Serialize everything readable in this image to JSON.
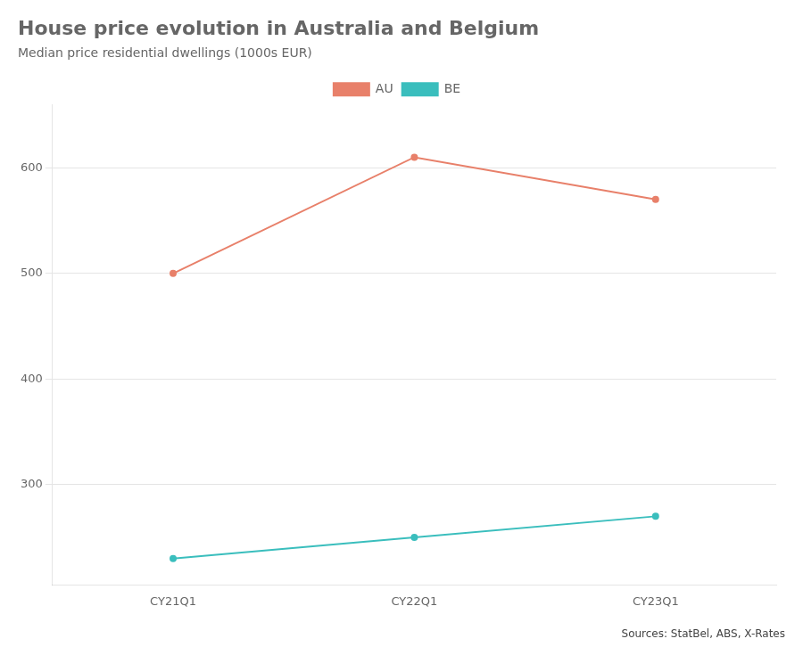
{
  "chart_data": {
    "type": "line",
    "title": "House price evolution in Australia and Belgium",
    "subtitle": "Median price residential dwellings (1000s EUR)",
    "source": "Sources: StatBel, ABS, X-Rates",
    "categories": [
      "CY21Q1",
      "CY22Q1",
      "CY23Q1"
    ],
    "series": [
      {
        "name": "AU",
        "color": "#E8806A",
        "values": [
          500,
          610,
          570
        ]
      },
      {
        "name": "BE",
        "color": "#3ABEBD",
        "values": [
          230,
          250,
          270
        ]
      }
    ],
    "ylim": [
      205,
      660
    ],
    "yticks": [
      300,
      400,
      500,
      600
    ],
    "grid": true,
    "legend": "top"
  }
}
